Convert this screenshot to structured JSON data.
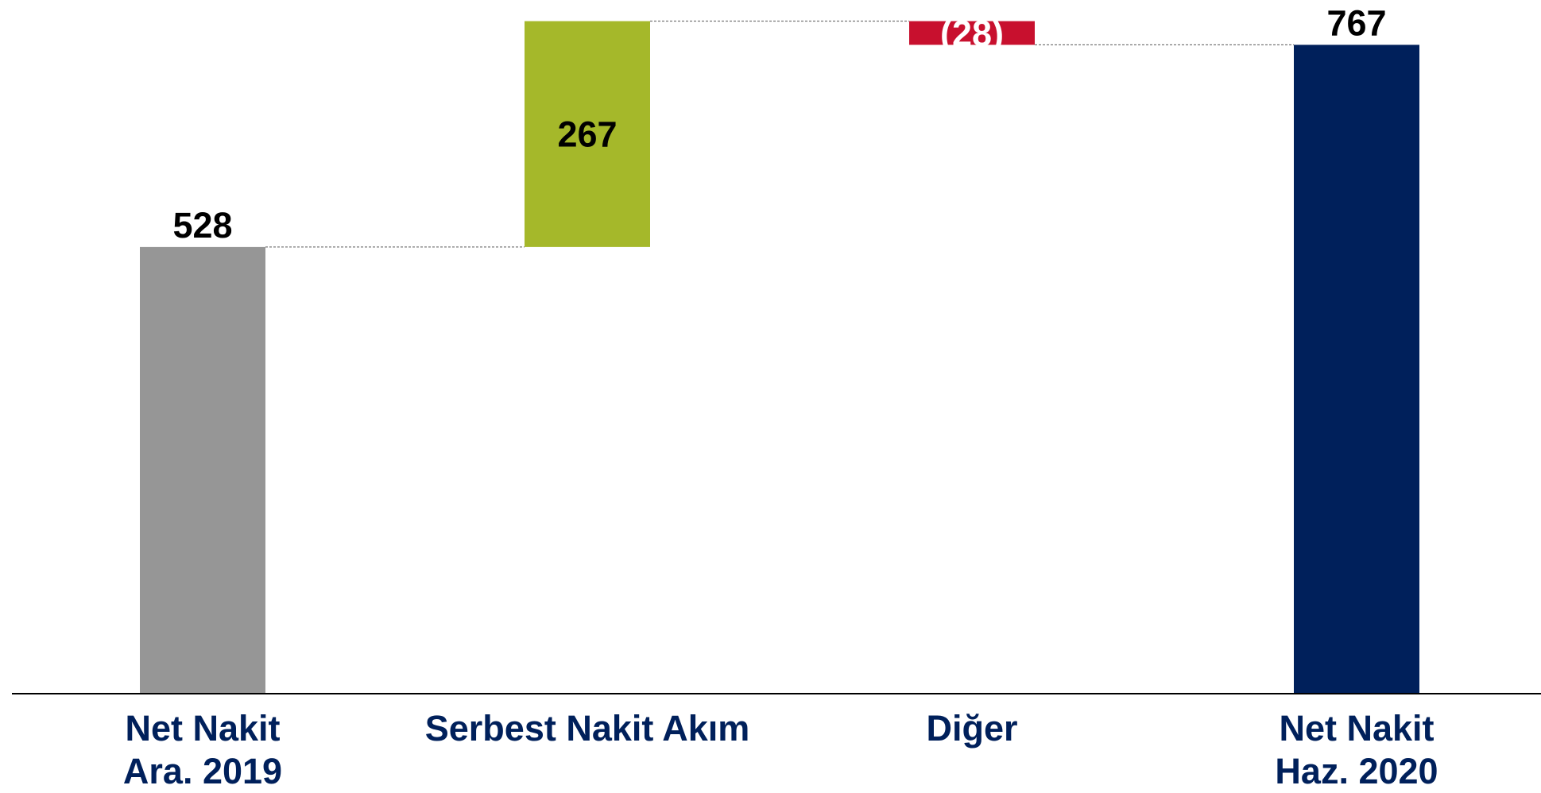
{
  "chart_data": {
    "type": "waterfall",
    "categories": [
      "Net Nakit\nAra. 2019",
      "Serbest Nakit Akım",
      "Diğer",
      "Net Nakit\nHaz. 2020"
    ],
    "values": [
      528,
      267,
      -28,
      767
    ],
    "value_labels": [
      "528",
      "267",
      "(28)",
      "767"
    ],
    "colors": [
      "#969696",
      "#a5b82a",
      "#c8102e",
      "#00205b"
    ],
    "ylim": [
      0,
      820
    ]
  }
}
